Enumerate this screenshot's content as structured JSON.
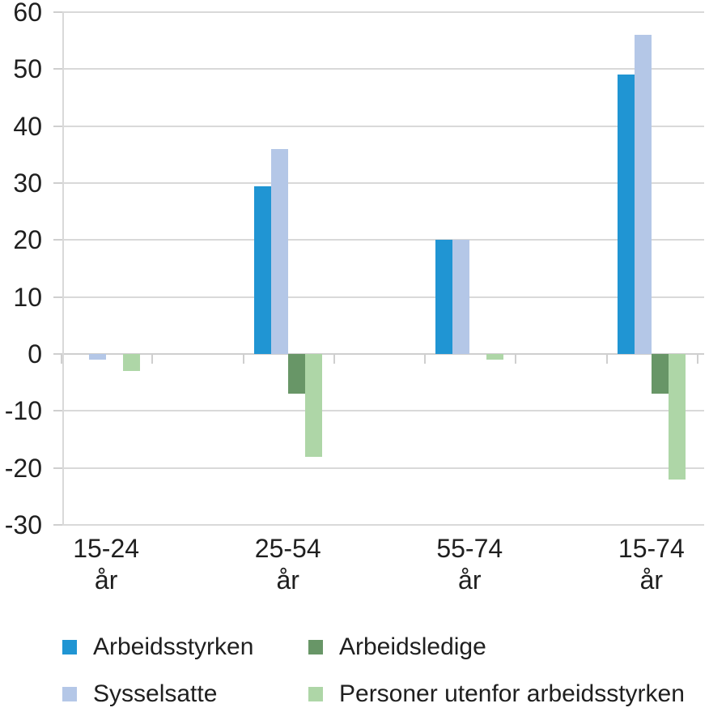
{
  "chart_data": {
    "type": "bar",
    "title": "",
    "xlabel": "",
    "ylabel": "",
    "categories": [
      "15-24 år",
      "25-54 år",
      "55-74 år",
      "15-74 år"
    ],
    "category_lines": [
      [
        "15-24",
        "år"
      ],
      [
        "25-54",
        "år"
      ],
      [
        "55-74",
        "år"
      ],
      [
        "15-74",
        "år"
      ]
    ],
    "series": [
      {
        "name": "Arbeidsstyrken",
        "color": "#2095d3",
        "values": [
          0,
          29.5,
          20,
          49
        ]
      },
      {
        "name": "Sysselsatte",
        "color": "#b4c7e7",
        "values": [
          -1,
          36,
          20,
          56
        ]
      },
      {
        "name": "Arbeidsledige",
        "color": "#689667",
        "values": [
          0,
          -7,
          0,
          -7
        ]
      },
      {
        "name": "Personer utenfor arbeidsstyrken",
        "color": "#aed6a7",
        "values": [
          -3,
          -18,
          -1,
          -22
        ]
      }
    ],
    "ylim": [
      -30,
      60
    ],
    "yticks": [
      60,
      50,
      40,
      30,
      20,
      10,
      0,
      -10,
      -20,
      -30
    ],
    "grid": true,
    "gridline_color": "#d9d9d9",
    "background_color": "#ffffff",
    "legend_position": "bottom",
    "legend_display_order": [
      0,
      2,
      1,
      3
    ]
  }
}
